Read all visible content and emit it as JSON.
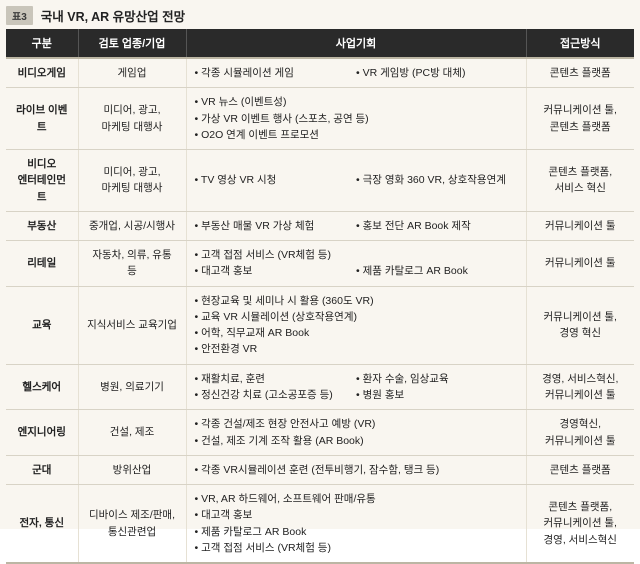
{
  "tableLabel": "표3",
  "title": "국내 VR, AR 유망산업 전망",
  "headers": [
    "구분",
    "검토 업종/기업",
    "사업기회",
    "접근방식"
  ],
  "rows": [
    {
      "category": "비디오게임",
      "company": "게임업",
      "opps": [
        {
          "t": "• 각종 시뮬레이션 게임",
          "w": "half"
        },
        {
          "t": "• VR 게임방 (PC방 대체)",
          "w": "half"
        }
      ],
      "approach": "콘텐츠 플랫폼"
    },
    {
      "category": "라이브 이벤트",
      "company": "미디어, 광고,\n마케팅 대행사",
      "opps": [
        {
          "t": "• VR 뉴스 (이벤트성)",
          "w": "full"
        },
        {
          "t": "• 가상 VR 이벤트 행사 (스포츠, 공연 등)",
          "w": "full"
        },
        {
          "t": "• O2O 연계 이벤트 프로모션",
          "w": "full"
        }
      ],
      "approach": "커뮤니케이션 툴,\n콘텐츠 플랫폼"
    },
    {
      "category": "비디오\n엔터테인먼트",
      "company": "미디어, 광고,\n마케팅 대행사",
      "opps": [
        {
          "t": "• TV 영상 VR 시청",
          "w": "half"
        },
        {
          "t": "• 극장 영화 360 VR, 상호작용연계",
          "w": "half"
        }
      ],
      "approach": "콘텐츠 플랫폼,\n서비스 혁신"
    },
    {
      "category": "부동산",
      "company": "중개업, 시공/시행사",
      "opps": [
        {
          "t": "• 부동산 매물 VR 가상 체험",
          "w": "half"
        },
        {
          "t": "• 홍보 전단 AR Book 제작",
          "w": "half"
        }
      ],
      "approach": "커뮤니케이션 툴"
    },
    {
      "category": "리테일",
      "company": "자동차, 의류, 유통 등",
      "opps": [
        {
          "t": "• 고객 접점 서비스 (VR체험 등)",
          "w": "full"
        },
        {
          "t": "• 대고객 홍보",
          "w": "half"
        },
        {
          "t": "• 제품 카탈로그 AR Book",
          "w": "half"
        }
      ],
      "approach": "커뮤니케이션 툴"
    },
    {
      "category": "교육",
      "company": "지식서비스 교육기업",
      "opps": [
        {
          "t": "• 현장교육 및 세미나 시 활용 (360도 VR)",
          "w": "full"
        },
        {
          "t": "• 교육 VR 시뮬레이션 (상호작용연계)",
          "w": "full"
        },
        {
          "t": "• 어학, 직무교재 AR Book",
          "w": "full"
        },
        {
          "t": "• 안전환경 VR",
          "w": "full"
        }
      ],
      "approach": "커뮤니케이션 툴,\n경영 혁신"
    },
    {
      "category": "헬스케어",
      "company": "병원, 의료기기",
      "opps": [
        {
          "t": "• 재활치료, 훈련",
          "w": "half"
        },
        {
          "t": "• 환자 수술, 임상교육",
          "w": "half"
        },
        {
          "t": "• 정신건강 치료 (고소공포증 등)",
          "w": "half"
        },
        {
          "t": "• 병원 홍보",
          "w": "half"
        }
      ],
      "approach": "경영, 서비스혁신,\n커뮤니케이션 툴"
    },
    {
      "category": "엔지니어링",
      "company": "건설, 제조",
      "opps": [
        {
          "t": "• 각종 건설/제조 현장 안전사고 예방 (VR)",
          "w": "full"
        },
        {
          "t": "• 건설, 제조 기계 조작 활용 (AR Book)",
          "w": "full"
        }
      ],
      "approach": "경영혁신,\n커뮤니케이션 툴"
    },
    {
      "category": "군대",
      "company": "방위산업",
      "opps": [
        {
          "t": "• 각종 VR시뮬레이션 훈련 (전투비행기, 잠수함, 탱크 등)",
          "w": "full"
        }
      ],
      "approach": "콘텐츠 플랫폼"
    },
    {
      "category": "전자, 통신",
      "company": "디바이스 제조/판매,\n통신관련업",
      "opps": [
        {
          "t": "• VR, AR 하드웨어, 소프트웨어 판매/유통",
          "w": "full"
        },
        {
          "t": "• 대고객 홍보",
          "w": "full"
        },
        {
          "t": "• 제품 카탈로그 AR Book",
          "w": "full"
        },
        {
          "t": "• 고객 접점 서비스 (VR체험 등)",
          "w": "full"
        }
      ],
      "approach": "콘텐츠 플랫폼,\n커뮤니케이션 툴,\n경영, 서비스혁신"
    }
  ]
}
